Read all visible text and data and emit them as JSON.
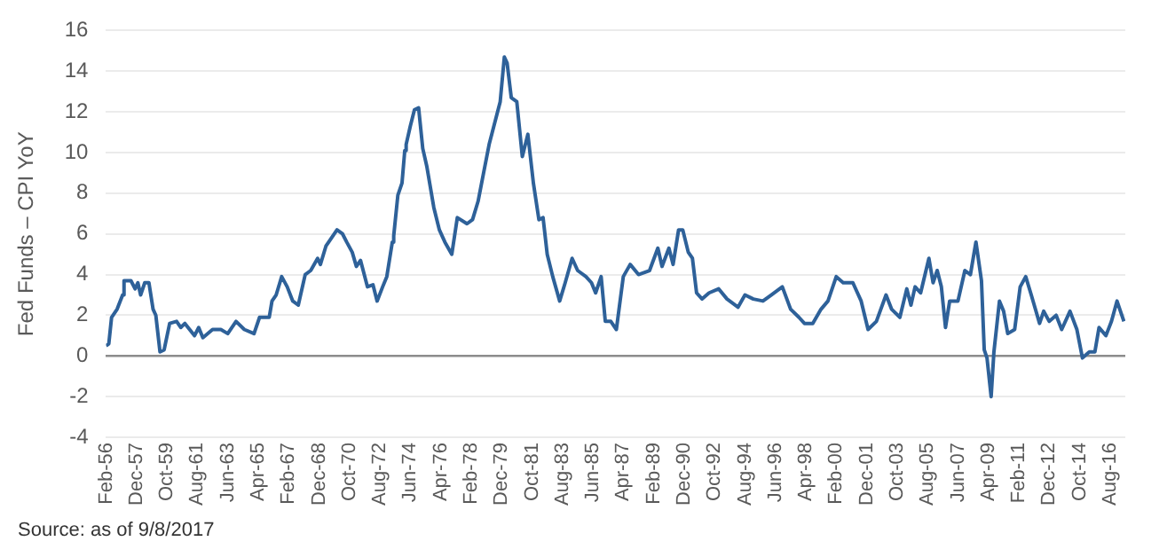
{
  "chart_data": {
    "type": "line",
    "ylabel": "Fed Funds – CPI YoY",
    "annotations": [
      "Source: as of 9/8/2017"
    ],
    "xlim": [
      "1956-02",
      "2017-07"
    ],
    "xticks": [
      {
        "value": "1956-02",
        "label": "Feb-56"
      },
      {
        "value": "1957-12",
        "label": "Dec-57"
      },
      {
        "value": "1959-10",
        "label": "Oct-59"
      },
      {
        "value": "1961-08",
        "label": "Aug-61"
      },
      {
        "value": "1963-06",
        "label": "Jun-63"
      },
      {
        "value": "1965-04",
        "label": "Apr-65"
      },
      {
        "value": "1967-02",
        "label": "Feb-67"
      },
      {
        "value": "1968-12",
        "label": "Dec-68"
      },
      {
        "value": "1970-10",
        "label": "Oct-70"
      },
      {
        "value": "1972-08",
        "label": "Aug-72"
      },
      {
        "value": "1974-06",
        "label": "Jun-74"
      },
      {
        "value": "1976-04",
        "label": "Apr-76"
      },
      {
        "value": "1978-02",
        "label": "Feb-78"
      },
      {
        "value": "1979-12",
        "label": "Dec-79"
      },
      {
        "value": "1981-10",
        "label": "Oct-81"
      },
      {
        "value": "1983-08",
        "label": "Aug-83"
      },
      {
        "value": "1985-06",
        "label": "Jun-85"
      },
      {
        "value": "1987-04",
        "label": "Apr-87"
      },
      {
        "value": "1989-02",
        "label": "Feb-89"
      },
      {
        "value": "1990-12",
        "label": "Dec-90"
      },
      {
        "value": "1992-10",
        "label": "Oct-92"
      },
      {
        "value": "1994-08",
        "label": "Aug-94"
      },
      {
        "value": "1996-06",
        "label": "Jun-96"
      },
      {
        "value": "1998-04",
        "label": "Apr-98"
      },
      {
        "value": "2000-02",
        "label": "Feb-00"
      },
      {
        "value": "2001-12",
        "label": "Dec-01"
      },
      {
        "value": "2003-10",
        "label": "Oct-03"
      },
      {
        "value": "2005-08",
        "label": "Aug-05"
      },
      {
        "value": "2007-06",
        "label": "Jun-07"
      },
      {
        "value": "2009-04",
        "label": "Apr-09"
      },
      {
        "value": "2011-02",
        "label": "Feb-11"
      },
      {
        "value": "2012-12",
        "label": "Dec-12"
      },
      {
        "value": "2014-10",
        "label": "Oct-14"
      },
      {
        "value": "2016-08",
        "label": "Aug-16"
      }
    ],
    "ylim": [
      -4,
      16
    ],
    "yticks": [
      -4,
      -2,
      0,
      2,
      4,
      6,
      8,
      10,
      12,
      14,
      16
    ],
    "grid": "y",
    "legend": false,
    "marker": "none",
    "line_style": "solid",
    "x": [
      "1956-02",
      "1956-04",
      "1956-06",
      "1956-10",
      "1957-02",
      "1957-03",
      "1957-08",
      "1957-11",
      "1958-01",
      "1958-03",
      "1958-06",
      "1958-09",
      "1958-12",
      "1959-02",
      "1959-05",
      "1959-08",
      "1959-12",
      "1960-05",
      "1960-08",
      "1960-11",
      "1961-06",
      "1961-09",
      "1961-12",
      "1962-07",
      "1963-01",
      "1963-06",
      "1963-12",
      "1964-06",
      "1965-01",
      "1965-05",
      "1965-12",
      "1966-02",
      "1966-05",
      "1966-09",
      "1967-01",
      "1967-05",
      "1967-09",
      "1968-02",
      "1968-06",
      "1968-11",
      "1969-01",
      "1969-05",
      "1969-07",
      "1970-01",
      "1970-05",
      "1970-08",
      "1970-12",
      "1971-03",
      "1971-06",
      "1971-11",
      "1972-03",
      "1972-06",
      "1972-10",
      "1973-01",
      "1973-05",
      "1973-06",
      "1973-09",
      "1973-12",
      "1974-02",
      "1974-03",
      "1974-06",
      "1974-09",
      "1974-12",
      "1975-03",
      "1975-06",
      "1975-11",
      "1976-03",
      "1976-07",
      "1976-12",
      "1977-04",
      "1977-11",
      "1978-03",
      "1978-07",
      "1978-11",
      "1979-03",
      "1979-11",
      "1980-02",
      "1980-04",
      "1980-07",
      "1980-11",
      "1981-03",
      "1981-07",
      "1981-11",
      "1982-03",
      "1982-06",
      "1982-09",
      "1983-01",
      "1983-06",
      "1983-10",
      "1984-03",
      "1984-07",
      "1985-01",
      "1985-05",
      "1985-08",
      "1985-12",
      "1986-03",
      "1986-07",
      "1986-11",
      "1987-04",
      "1987-09",
      "1988-03",
      "1988-11",
      "1989-05",
      "1989-08",
      "1990-01",
      "1990-04",
      "1990-08",
      "1990-11",
      "1991-03",
      "1991-06",
      "1991-09",
      "1992-01",
      "1992-06",
      "1993-01",
      "1993-07",
      "1994-03",
      "1994-08",
      "1995-02",
      "1995-09",
      "1996-03",
      "1996-11",
      "1997-05",
      "1997-11",
      "1998-03",
      "1998-09",
      "1999-03",
      "1999-08",
      "2000-02",
      "2000-07",
      "2001-02",
      "2001-08",
      "2002-01",
      "2002-07",
      "2003-02",
      "2003-06",
      "2003-12",
      "2004-05",
      "2004-08",
      "2004-11",
      "2005-03",
      "2005-09",
      "2005-12",
      "2006-03",
      "2006-06",
      "2006-09",
      "2006-12",
      "2007-06",
      "2007-11",
      "2008-03",
      "2008-07",
      "2008-11",
      "2009-01",
      "2009-03",
      "2009-06",
      "2009-08",
      "2009-12",
      "2010-03",
      "2010-06",
      "2010-11",
      "2011-03",
      "2011-07",
      "2011-11",
      "2012-05",
      "2012-08",
      "2012-12",
      "2013-05",
      "2013-09",
      "2014-03",
      "2014-08",
      "2014-12",
      "2015-05",
      "2015-09",
      "2015-12",
      "2016-05",
      "2016-09",
      "2017-01",
      "2017-03",
      "2017-06"
    ],
    "series": [
      {
        "color": "#2e6199",
        "values": [
          0.5,
          0.6,
          1.9,
          2.3,
          3.0,
          3.7,
          3.7,
          3.3,
          3.6,
          3.0,
          3.6,
          3.6,
          2.3,
          2.0,
          0.2,
          0.3,
          1.6,
          1.7,
          1.4,
          1.6,
          1.0,
          1.4,
          0.9,
          1.3,
          1.3,
          1.1,
          1.7,
          1.3,
          1.1,
          1.9,
          1.9,
          2.7,
          3.0,
          3.9,
          3.4,
          2.7,
          2.5,
          4.0,
          4.2,
          4.8,
          4.5,
          5.4,
          5.6,
          6.2,
          6.0,
          5.6,
          5.1,
          4.4,
          4.7,
          3.4,
          3.5,
          2.7,
          3.4,
          3.9,
          5.6,
          5.9,
          7.9,
          8.5,
          10.1,
          10.4,
          11.3,
          12.1,
          12.2,
          10.2,
          9.3,
          7.3,
          6.2,
          5.6,
          5.0,
          6.8,
          6.5,
          6.7,
          7.6,
          9.0,
          10.4,
          12.5,
          14.7,
          14.4,
          12.7,
          12.5,
          9.8,
          10.9,
          8.5,
          6.7,
          6.8,
          5.0,
          3.9,
          2.7,
          3.6,
          4.8,
          4.2,
          3.9,
          3.6,
          3.1,
          3.9,
          1.7,
          1.7,
          1.3,
          3.9,
          4.5,
          4.0,
          4.2,
          5.3,
          4.4,
          5.3,
          4.5,
          6.2,
          6.2,
          5.1,
          4.8,
          3.1,
          2.8,
          3.1,
          3.3,
          2.8,
          2.4,
          3.0,
          2.8,
          2.7,
          3.0,
          3.4,
          2.3,
          1.9,
          1.6,
          1.6,
          2.3,
          2.7,
          3.9,
          3.6,
          3.6,
          2.7,
          1.3,
          1.7,
          3.0,
          2.3,
          1.9,
          3.3,
          2.5,
          3.4,
          3.1,
          4.8,
          3.6,
          4.2,
          3.4,
          1.4,
          2.7,
          2.7,
          4.2,
          4.0,
          5.6,
          3.7,
          0.3,
          -0.1,
          -2.0,
          0.2,
          2.7,
          2.2,
          1.1,
          1.3,
          3.4,
          3.9,
          3.0,
          1.6,
          2.2,
          1.7,
          2.0,
          1.3,
          2.2,
          1.3,
          -0.1,
          0.2,
          0.2,
          1.4,
          1.0,
          1.7,
          2.7,
          2.3,
          1.7
        ]
      }
    ]
  }
}
